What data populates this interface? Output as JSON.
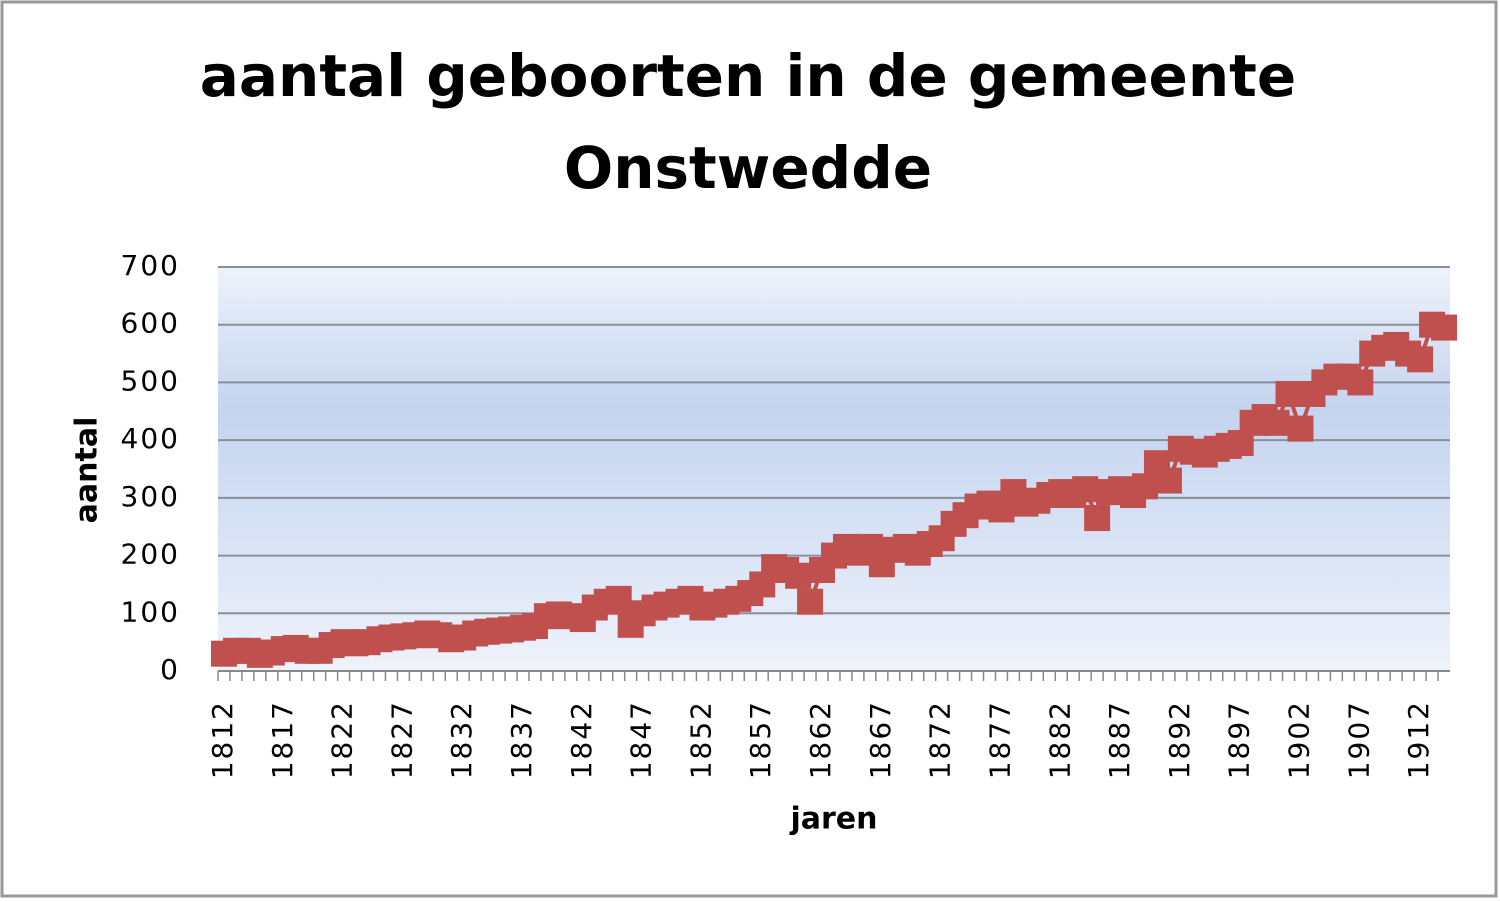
{
  "chart_data": {
    "type": "line",
    "title": "aantal geboorten in de gemeente Onstwedde",
    "x_label": "jaren",
    "y_label": "aantal",
    "categories": [
      "1812",
      null,
      null,
      null,
      null,
      "1817",
      null,
      null,
      null,
      null,
      "1822",
      null,
      null,
      null,
      null,
      "1827",
      null,
      null,
      null,
      null,
      "1832",
      null,
      null,
      null,
      null,
      "1837",
      null,
      null,
      null,
      null,
      "1842",
      null,
      null,
      null,
      null,
      "1847",
      null,
      null,
      null,
      null,
      "1852",
      null,
      null,
      null,
      null,
      "1857",
      null,
      null,
      null,
      null,
      "1862",
      null,
      null,
      null,
      null,
      "1867",
      null,
      null,
      null,
      null,
      "1872",
      null,
      null,
      null,
      null,
      "1877",
      null,
      null,
      null,
      null,
      "1882",
      null,
      null,
      null,
      null,
      "1887",
      null,
      null,
      null,
      null,
      "1892",
      null,
      null,
      null,
      null,
      "1897",
      null,
      null,
      null,
      null,
      "1902",
      null,
      null,
      null,
      null,
      "1907",
      null,
      null,
      null,
      null,
      "1912",
      null,
      null
    ],
    "series": [
      {
        "name": "aantal",
        "color": "#c0504d",
        "marker": "square",
        "values": [
          30,
          35,
          35,
          28,
          32,
          38,
          40,
          35,
          35,
          45,
          50,
          48,
          50,
          55,
          58,
          60,
          62,
          65,
          62,
          55,
          58,
          65,
          68,
          70,
          72,
          75,
          78,
          95,
          98,
          95,
          90,
          110,
          120,
          125,
          80,
          100,
          110,
          115,
          120,
          125,
          110,
          115,
          120,
          125,
          135,
          150,
          180,
          175,
          165,
          120,
          175,
          200,
          215,
          205,
          215,
          185,
          210,
          215,
          205,
          220,
          230,
          255,
          270,
          285,
          290,
          280,
          310,
          290,
          295,
          305,
          310,
          305,
          315,
          265,
          310,
          315,
          305,
          320,
          360,
          330,
          385,
          380,
          375,
          385,
          390,
          395,
          430,
          440,
          430,
          480,
          420,
          480,
          500,
          510,
          510,
          500,
          550,
          560,
          565,
          550,
          540,
          600,
          595
        ]
      }
    ],
    "ylim": [
      0,
      700
    ],
    "yticks": [
      0,
      100,
      200,
      300,
      400,
      500,
      600,
      700
    ],
    "grid": true
  }
}
